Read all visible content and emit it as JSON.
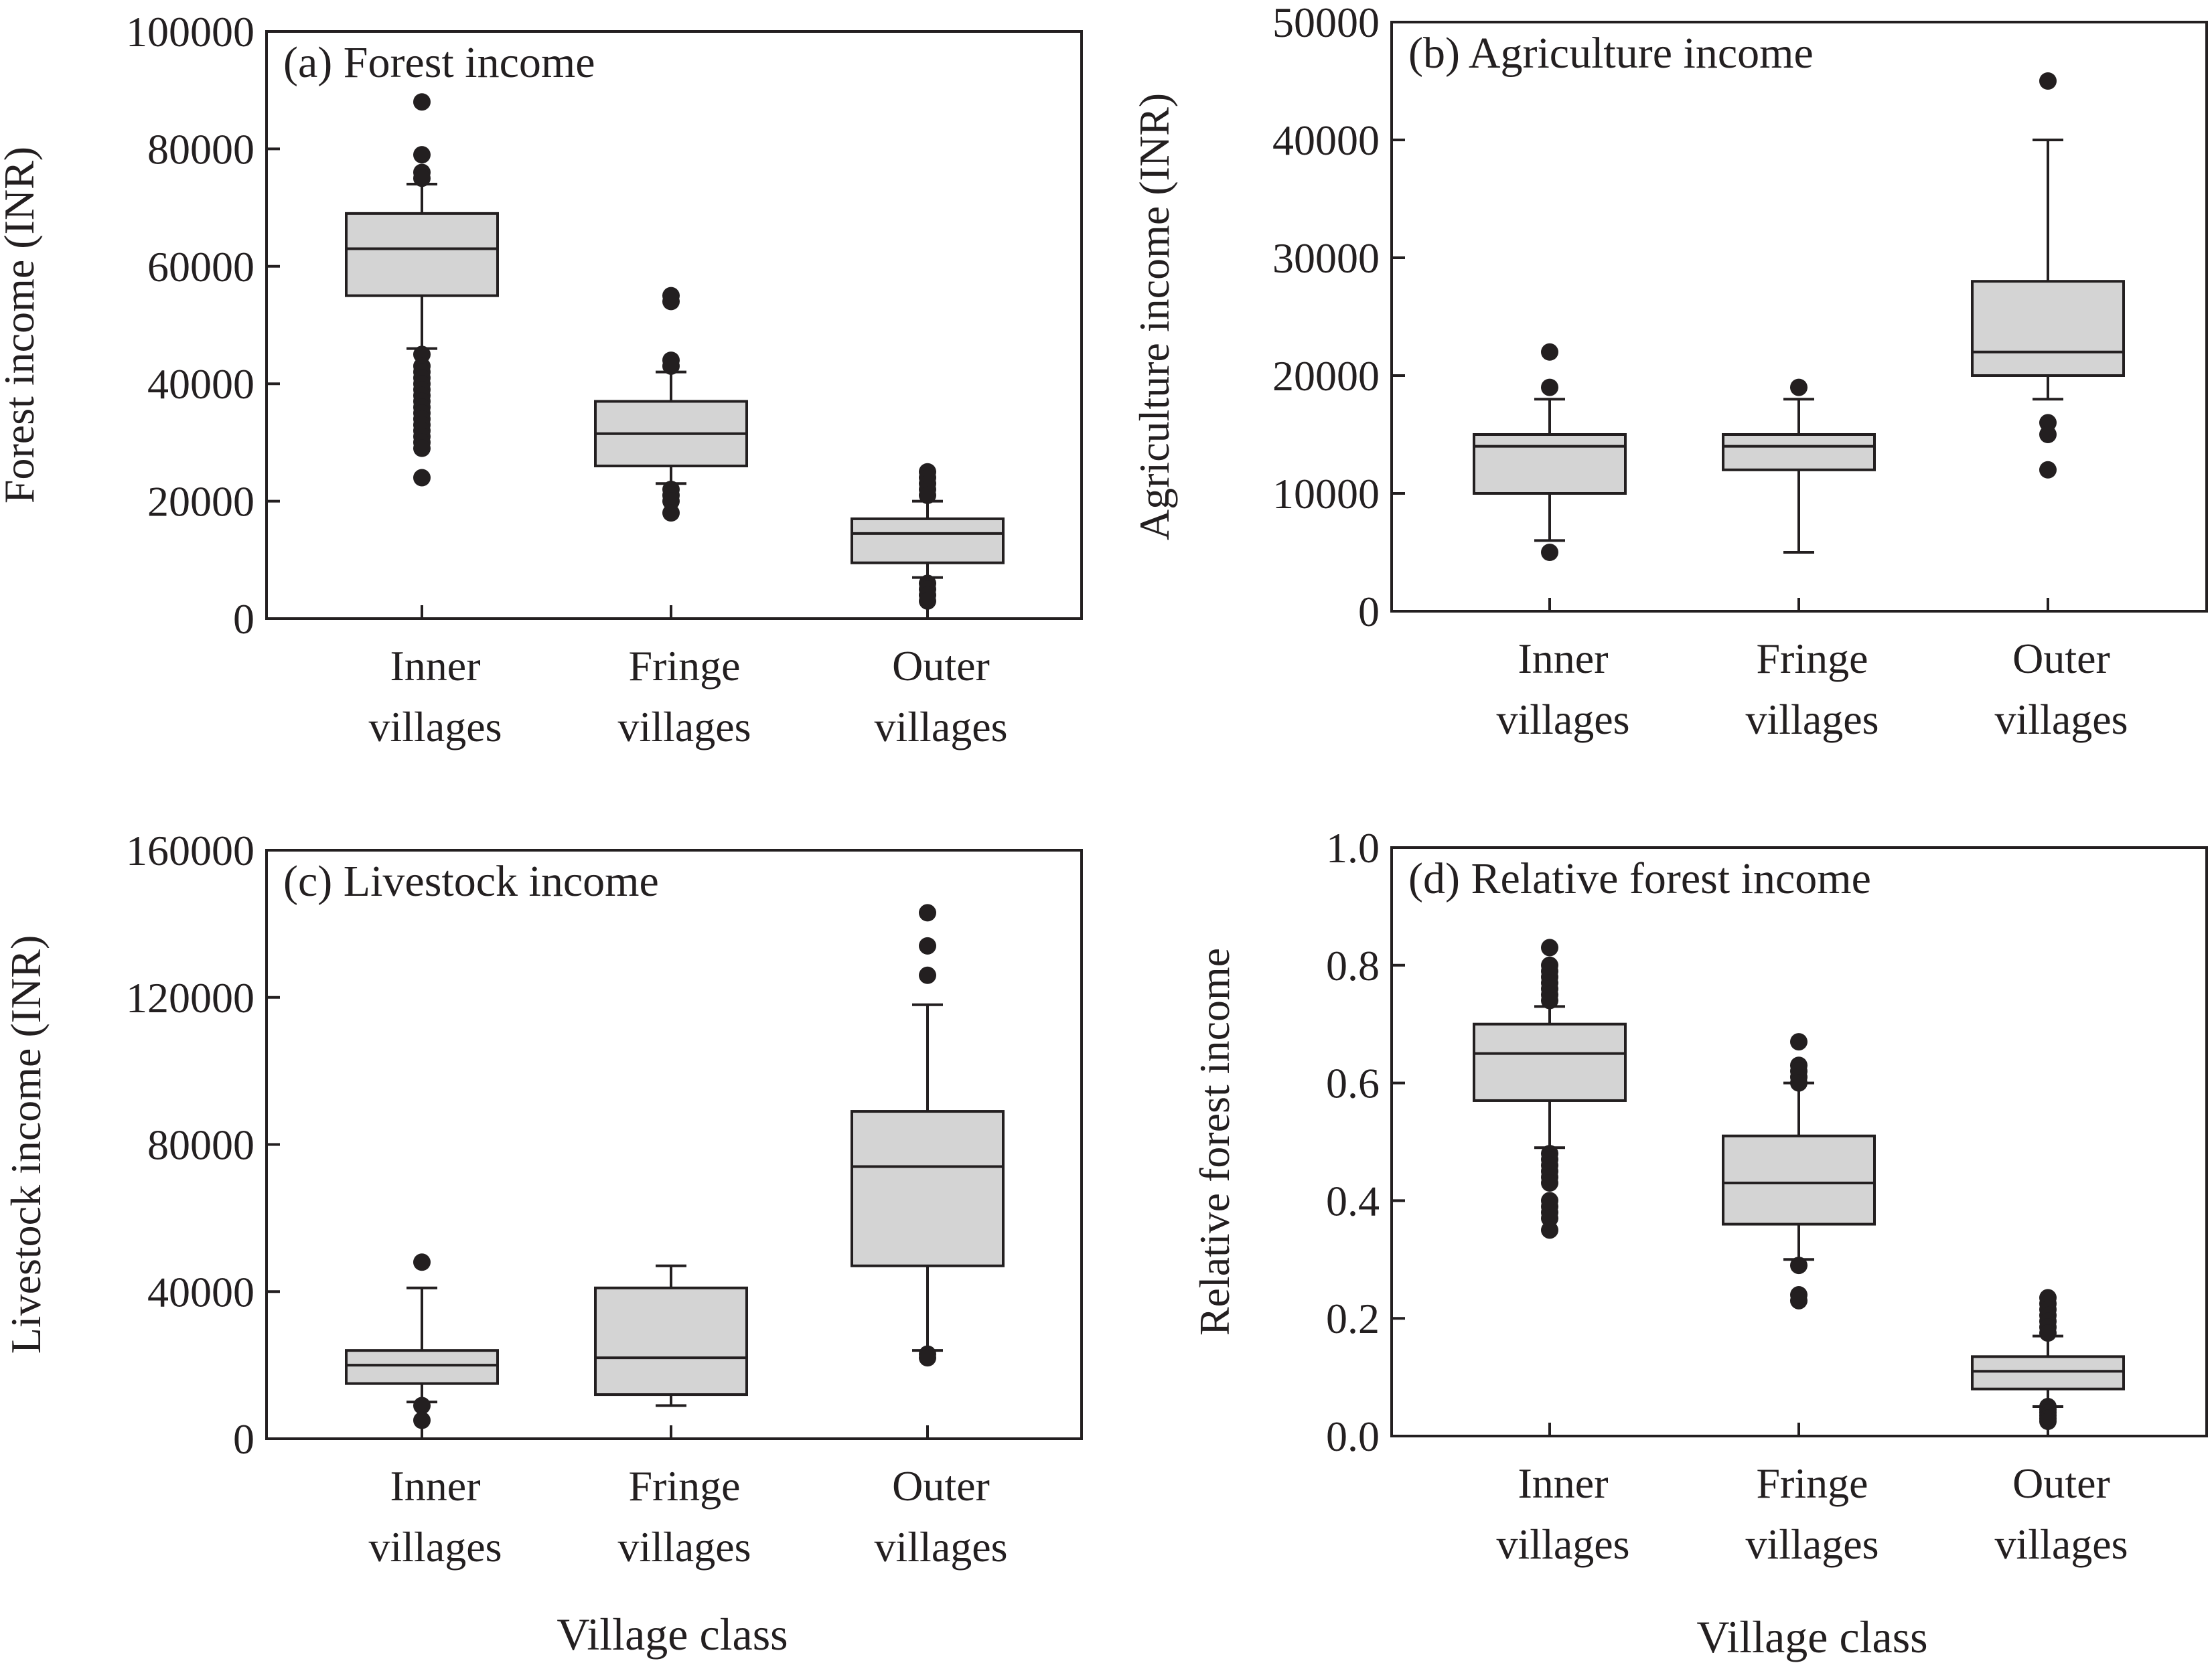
{
  "colors": {
    "box_fill": "#d4d4d4",
    "ink": "#231f20",
    "background": "#ffffff"
  },
  "chart_data": [
    {
      "type": "box",
      "title": "(a) Forest income",
      "ylabel": "Forest income (INR)",
      "xlabel": "",
      "ylim": [
        0,
        100000
      ],
      "yticks": [
        0,
        20000,
        40000,
        60000,
        80000,
        100000
      ],
      "ytick_labels": [
        "0",
        "20000",
        "40000",
        "60000",
        "80000",
        "100000"
      ],
      "categories": [
        {
          "line1": "Inner",
          "line2": "villages"
        },
        {
          "line1": "Fringe",
          "line2": "villages"
        },
        {
          "line1": "Outer",
          "line2": "villages"
        }
      ],
      "boxes": [
        {
          "whisker_low": 46000,
          "q1": 55000,
          "median": 63000,
          "q3": 69000,
          "whisker_high": 74000,
          "outliers": [
            88000,
            79000,
            76000,
            75000,
            45000,
            43000,
            42000,
            41000,
            40000,
            39000,
            38000,
            37000,
            36000,
            35000,
            34000,
            33000,
            32000,
            31000,
            30000,
            29000,
            24000
          ]
        },
        {
          "whisker_low": 23000,
          "q1": 26000,
          "median": 31500,
          "q3": 37000,
          "whisker_high": 42000,
          "outliers": [
            55000,
            54000,
            44000,
            43000,
            22000,
            21000,
            20000,
            18000
          ]
        },
        {
          "whisker_low": 7000,
          "q1": 9500,
          "median": 14500,
          "q3": 17000,
          "whisker_high": 20000,
          "outliers": [
            25000,
            24000,
            23000,
            22000,
            21000,
            6000,
            5000,
            4000,
            3000
          ]
        }
      ]
    },
    {
      "type": "box",
      "title": "(b) Agriculture income",
      "ylabel": "Agriculture income (INR)",
      "xlabel": "",
      "ylim": [
        0,
        50000
      ],
      "yticks": [
        0,
        10000,
        20000,
        30000,
        40000,
        50000
      ],
      "ytick_labels": [
        "0",
        "10000",
        "20000",
        "30000",
        "40000",
        "50000"
      ],
      "categories": [
        {
          "line1": "Inner",
          "line2": "villages"
        },
        {
          "line1": "Fringe",
          "line2": "villages"
        },
        {
          "line1": "Outer",
          "line2": "villages"
        }
      ],
      "boxes": [
        {
          "whisker_low": 6000,
          "q1": 10000,
          "median": 14000,
          "q3": 15000,
          "whisker_high": 18000,
          "outliers": [
            22000,
            19000,
            5000
          ]
        },
        {
          "whisker_low": 5000,
          "q1": 12000,
          "median": 14000,
          "q3": 15000,
          "whisker_high": 18000,
          "outliers": [
            19000
          ]
        },
        {
          "whisker_low": 18000,
          "q1": 20000,
          "median": 22000,
          "q3": 28000,
          "whisker_high": 40000,
          "outliers": [
            45000,
            16000,
            15000,
            12000
          ]
        }
      ]
    },
    {
      "type": "box",
      "title": "(c) Livestock income",
      "ylabel": "Livestock income (INR)",
      "xlabel": "Village class",
      "ylim": [
        0,
        160000
      ],
      "yticks": [
        0,
        40000,
        80000,
        120000,
        160000
      ],
      "ytick_labels": [
        "0",
        "40000",
        "80000",
        "120000",
        "160000"
      ],
      "categories": [
        {
          "line1": "Inner",
          "line2": "villages"
        },
        {
          "line1": "Fringe",
          "line2": "villages"
        },
        {
          "line1": "Outer",
          "line2": "villages"
        }
      ],
      "boxes": [
        {
          "whisker_low": 10000,
          "q1": 15000,
          "median": 20000,
          "q3": 24000,
          "whisker_high": 41000,
          "outliers": [
            48000,
            9000,
            5000
          ]
        },
        {
          "whisker_low": 9000,
          "q1": 12000,
          "median": 22000,
          "q3": 41000,
          "whisker_high": 47000,
          "outliers": []
        },
        {
          "whisker_low": 24000,
          "q1": 47000,
          "median": 74000,
          "q3": 89000,
          "whisker_high": 118000,
          "outliers": [
            143000,
            134000,
            126000,
            23000,
            22000
          ]
        }
      ]
    },
    {
      "type": "box",
      "title": "(d) Relative forest income",
      "ylabel": "Relative forest income",
      "xlabel": "Village class",
      "ylim": [
        0,
        1.0
      ],
      "yticks": [
        0,
        0.2,
        0.4,
        0.6,
        0.8,
        1.0
      ],
      "ytick_labels": [
        "0.0",
        "0.2",
        "0.4",
        "0.6",
        "0.8",
        "1.0"
      ],
      "categories": [
        {
          "line1": "Inner",
          "line2": "villages"
        },
        {
          "line1": "Fringe",
          "line2": "villages"
        },
        {
          "line1": "Outer",
          "line2": "villages"
        }
      ],
      "boxes": [
        {
          "whisker_low": 0.49,
          "q1": 0.57,
          "median": 0.65,
          "q3": 0.7,
          "whisker_high": 0.73,
          "outliers": [
            0.83,
            0.8,
            0.79,
            0.78,
            0.77,
            0.76,
            0.75,
            0.74,
            0.48,
            0.47,
            0.46,
            0.45,
            0.44,
            0.43,
            0.4,
            0.39,
            0.38,
            0.37,
            0.35
          ]
        },
        {
          "whisker_low": 0.3,
          "q1": 0.36,
          "median": 0.43,
          "q3": 0.51,
          "whisker_high": 0.6,
          "outliers": [
            0.67,
            0.63,
            0.62,
            0.61,
            0.6,
            0.29,
            0.24,
            0.23
          ]
        },
        {
          "whisker_low": 0.05,
          "q1": 0.08,
          "median": 0.11,
          "q3": 0.135,
          "whisker_high": 0.17,
          "outliers": [
            0.235,
            0.225,
            0.215,
            0.205,
            0.195,
            0.185,
            0.175,
            0.05,
            0.045,
            0.04,
            0.035,
            0.03,
            0.025
          ]
        }
      ]
    }
  ]
}
